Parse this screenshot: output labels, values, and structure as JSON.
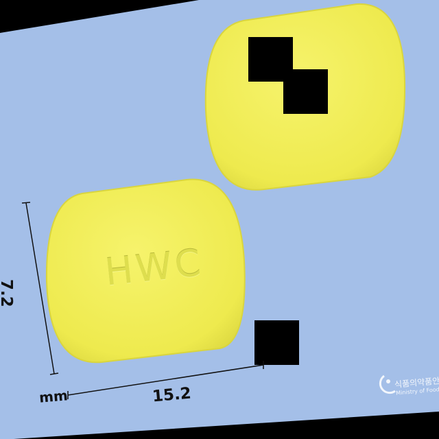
{
  "photo": {
    "background_color": "#a4bfe8",
    "tablet_color": "#f2ef5a",
    "tablet_imprint": "HWC"
  },
  "dimensions": {
    "length": "15.2",
    "width": "7.2",
    "unit": "mm"
  },
  "watermark": {
    "korean": "식품의약품안전처",
    "english": "Ministry of Food and Drug Safety"
  }
}
